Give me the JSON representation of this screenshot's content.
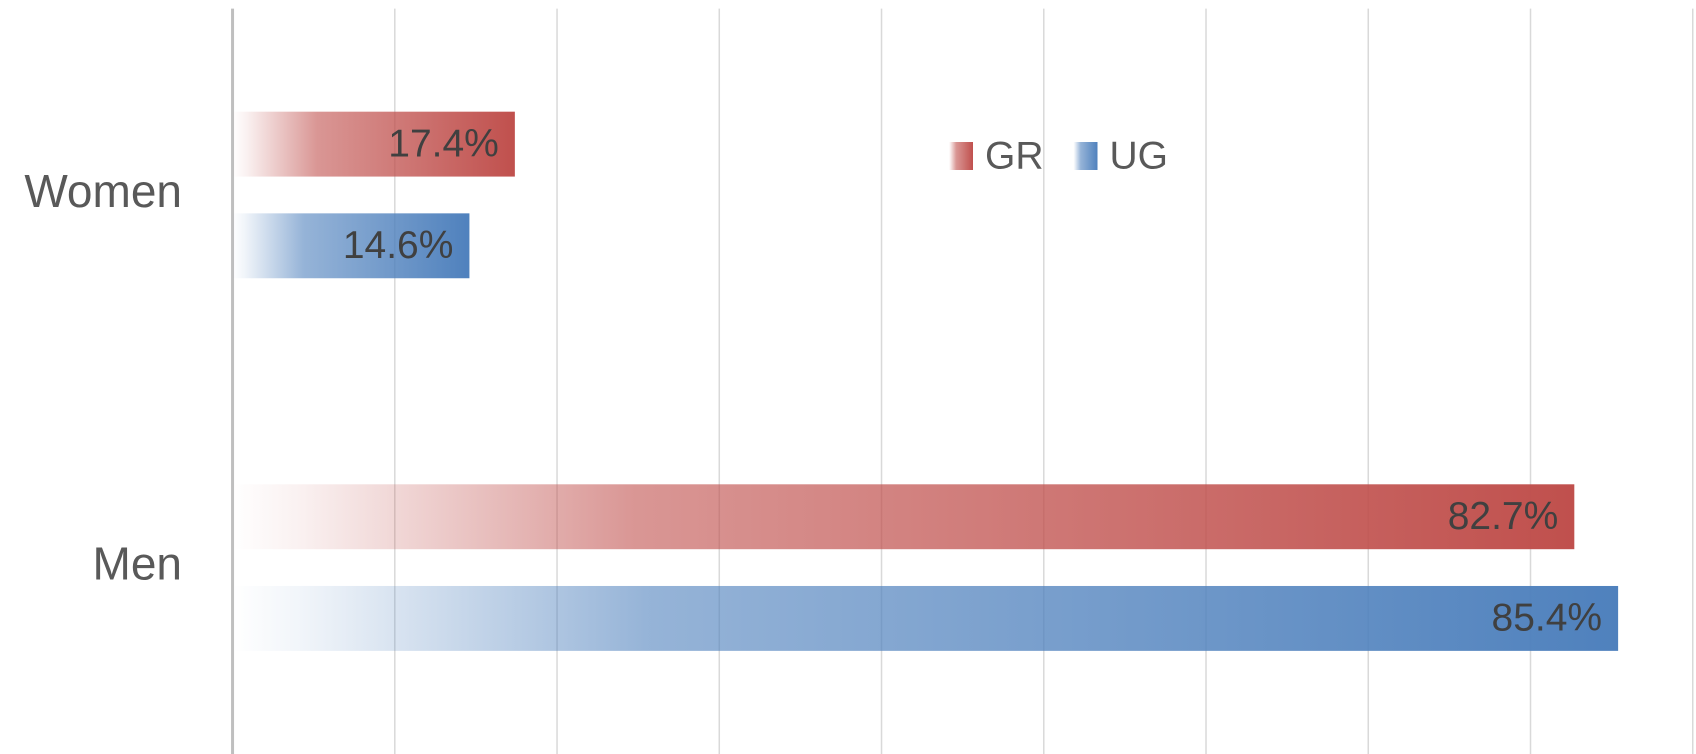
{
  "chart_data": {
    "type": "hbar",
    "categories": [
      "Women",
      "Men"
    ],
    "series": [
      {
        "name": "GR",
        "color": "#c0504d",
        "values": [
          17.4,
          82.7
        ],
        "value_labels": [
          "17.4%",
          "82.7%"
        ]
      },
      {
        "name": "UG",
        "color": "#4f81bd",
        "values": [
          14.6,
          85.4
        ],
        "value_labels": [
          "14.6%",
          "85.4%"
        ]
      }
    ],
    "xlim": [
      0,
      90
    ],
    "xticks": [
      0,
      10,
      20,
      30,
      40,
      50,
      60,
      70,
      80,
      90
    ],
    "grid": true,
    "legend": "top"
  }
}
